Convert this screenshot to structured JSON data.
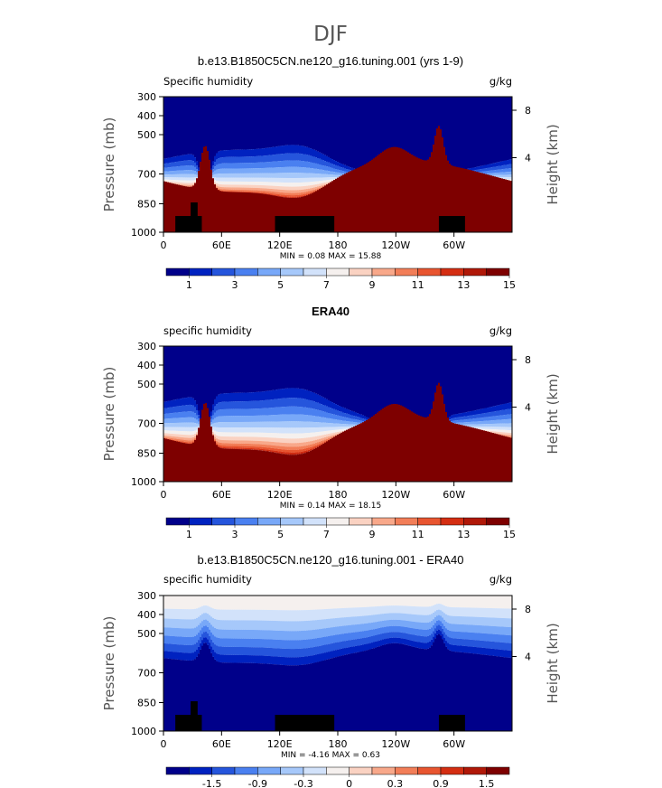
{
  "figure": {
    "title": "DJF"
  },
  "chart_data": [
    {
      "type": "heatmap",
      "title": "b.e13.B1850C5CN.ne120_g16.tuning.001 (yrs 1-9)",
      "left_label": "Specific humidity",
      "units": "g/kg",
      "ylabel": "Pressure (mb)",
      "y2label": "Height (km)",
      "x_ticks": [
        "0",
        "60E",
        "120E",
        "180",
        "120W",
        "60W"
      ],
      "y_ticks": [
        "300",
        "400",
        "500",
        "700",
        "850",
        "1000"
      ],
      "y2_ticks": [
        "8",
        "4"
      ],
      "stats": "MIN =    0.08   MAX =   15.88",
      "colorbar_labels": [
        "1",
        "3",
        "5",
        "7",
        "9",
        "11",
        "13",
        "15"
      ],
      "colorbar_colors": [
        "#00008a",
        "#0022c0",
        "#2555dc",
        "#4a80f0",
        "#78a8f8",
        "#a6c8fa",
        "#d2e2fa",
        "#f5f0ee",
        "#fad2c2",
        "#f8a88a",
        "#f27e58",
        "#e85530",
        "#d42e12",
        "#b01808",
        "#7e0000"
      ],
      "contour_fill_levels": [
        1,
        2,
        3,
        4,
        5,
        6,
        7,
        8,
        9,
        10,
        11,
        12,
        13,
        14
      ]
    },
    {
      "type": "heatmap",
      "title": "ERA40",
      "left_label": "specific humidity",
      "units": "g/kg",
      "ylabel": "Pressure (mb)",
      "y2label": "Height (km)",
      "x_ticks": [
        "0",
        "60E",
        "120E",
        "180",
        "120W",
        "60W"
      ],
      "y_ticks": [
        "300",
        "400",
        "500",
        "700",
        "850",
        "1000"
      ],
      "y2_ticks": [
        "8",
        "4"
      ],
      "stats": "MIN =    0.14   MAX =   18.15",
      "colorbar_labels": [
        "1",
        "3",
        "5",
        "7",
        "9",
        "11",
        "13",
        "15"
      ],
      "colorbar_colors": [
        "#00008a",
        "#0022c0",
        "#2555dc",
        "#4a80f0",
        "#78a8f8",
        "#a6c8fa",
        "#d2e2fa",
        "#f5f0ee",
        "#fad2c2",
        "#f8a88a",
        "#f27e58",
        "#e85530",
        "#d42e12",
        "#b01808",
        "#7e0000"
      ],
      "contour_fill_levels": [
        1,
        2,
        3,
        4,
        5,
        6,
        7,
        8,
        9,
        10,
        11,
        12,
        13,
        14
      ]
    },
    {
      "type": "heatmap",
      "title": "b.e13.B1850C5CN.ne120_g16.tuning.001 - ERA40",
      "left_label": "specific humidity",
      "units": "g/kg",
      "ylabel": "Pressure (mb)",
      "y2label": "Height (km)",
      "x_ticks": [
        "0",
        "60E",
        "120E",
        "180",
        "120W",
        "60W"
      ],
      "y_ticks": [
        "300",
        "400",
        "500",
        "700",
        "850",
        "1000"
      ],
      "y2_ticks": [
        "8",
        "4"
      ],
      "stats": "MIN =   -4.16   MAX =    0.63",
      "colorbar_labels": [
        "-1.5",
        "-0.9",
        "-0.3",
        "0",
        "0.3",
        "0.9",
        "1.5"
      ],
      "colorbar_colors": [
        "#00008a",
        "#0022c0",
        "#2555dc",
        "#4a80f0",
        "#78a8f8",
        "#a6c8fa",
        "#d2e2fa",
        "#f5f0ee",
        "#fad2c2",
        "#f8a88a",
        "#f27e58",
        "#e85530",
        "#d42e12",
        "#b01808",
        "#7e0000"
      ],
      "contour_fill_levels": [
        -1.8,
        -1.5,
        -1.2,
        -0.9,
        -0.6,
        -0.3,
        -0.1,
        0.1,
        0.3,
        0.6,
        0.9,
        1.2,
        1.5,
        1.8
      ]
    }
  ]
}
